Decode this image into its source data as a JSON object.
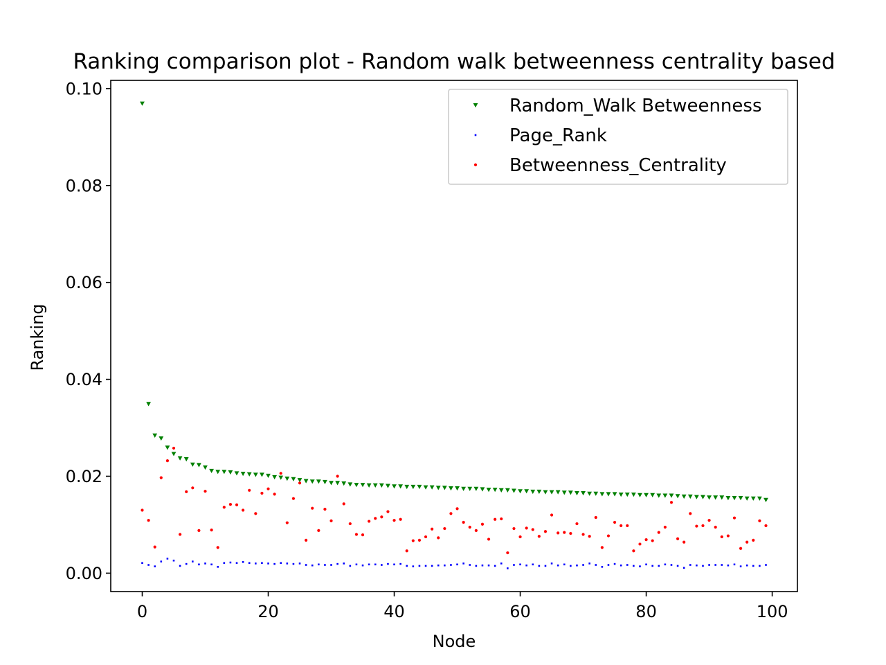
{
  "chart_data": {
    "type": "scatter",
    "title": "Ranking comparison plot - Random walk betweenness centrality based",
    "xlabel": "Node",
    "ylabel": "Ranking",
    "xlim": [
      -5,
      104
    ],
    "ylim": [
      -0.0038,
      0.1017
    ],
    "xticks": [
      0,
      20,
      40,
      60,
      80,
      100
    ],
    "yticks": [
      0.0,
      0.02,
      0.04,
      0.06,
      0.08,
      0.1
    ],
    "xtick_labels": [
      "0",
      "20",
      "40",
      "60",
      "80",
      "100"
    ],
    "ytick_labels": [
      "0.00",
      "0.02",
      "0.04",
      "0.06",
      "0.08",
      "0.10"
    ],
    "grid": false,
    "legend_position": "top-right",
    "series": [
      {
        "name": "Random_Walk Betweenness",
        "color": "#008000",
        "marker": "triangle-down",
        "values": [
          0.0969,
          0.0349,
          0.0284,
          0.0278,
          0.0259,
          0.0246,
          0.0237,
          0.0235,
          0.0224,
          0.0223,
          0.0218,
          0.0211,
          0.0209,
          0.0209,
          0.0208,
          0.0206,
          0.0205,
          0.0204,
          0.0203,
          0.0203,
          0.0201,
          0.0198,
          0.0197,
          0.0195,
          0.0194,
          0.0192,
          0.019,
          0.0189,
          0.0189,
          0.0188,
          0.0186,
          0.0186,
          0.0185,
          0.0183,
          0.0182,
          0.0182,
          0.0181,
          0.0181,
          0.0181,
          0.018,
          0.0179,
          0.0179,
          0.0178,
          0.0178,
          0.0178,
          0.0177,
          0.0177,
          0.0176,
          0.0176,
          0.0175,
          0.0175,
          0.0174,
          0.0174,
          0.0174,
          0.0173,
          0.0172,
          0.0172,
          0.0171,
          0.0171,
          0.017,
          0.0169,
          0.0169,
          0.0168,
          0.0168,
          0.0167,
          0.0167,
          0.0167,
          0.0166,
          0.0166,
          0.0165,
          0.0165,
          0.0164,
          0.0164,
          0.0163,
          0.0163,
          0.0163,
          0.0162,
          0.0162,
          0.0162,
          0.0161,
          0.0161,
          0.0161,
          0.016,
          0.016,
          0.016,
          0.0159,
          0.0158,
          0.0158,
          0.0157,
          0.0157,
          0.0156,
          0.0156,
          0.0156,
          0.0155,
          0.0155,
          0.0155,
          0.0154,
          0.0154,
          0.0154,
          0.0151
        ]
      },
      {
        "name": "Page_Rank",
        "color": "#0000ff",
        "marker": "pixel",
        "values": [
          0.0021,
          0.0017,
          0.0014,
          0.0024,
          0.003,
          0.0026,
          0.0015,
          0.0019,
          0.0024,
          0.0018,
          0.002,
          0.0018,
          0.0013,
          0.0021,
          0.0022,
          0.0021,
          0.0023,
          0.0021,
          0.002,
          0.0021,
          0.002,
          0.0019,
          0.0021,
          0.002,
          0.0019,
          0.002,
          0.0017,
          0.0016,
          0.0018,
          0.0017,
          0.0017,
          0.0019,
          0.002,
          0.0015,
          0.0018,
          0.0016,
          0.0018,
          0.0018,
          0.0017,
          0.0019,
          0.0018,
          0.0019,
          0.0015,
          0.0014,
          0.0015,
          0.0015,
          0.0015,
          0.0016,
          0.0016,
          0.0017,
          0.0018,
          0.002,
          0.0017,
          0.0015,
          0.0016,
          0.0016,
          0.0015,
          0.002,
          0.001,
          0.0017,
          0.0018,
          0.0016,
          0.0018,
          0.0015,
          0.0015,
          0.002,
          0.0016,
          0.0018,
          0.0015,
          0.0016,
          0.0017,
          0.002,
          0.0017,
          0.0013,
          0.0017,
          0.0019,
          0.0016,
          0.0017,
          0.0015,
          0.0014,
          0.0018,
          0.0015,
          0.0015,
          0.0018,
          0.0017,
          0.0015,
          0.0011,
          0.0017,
          0.0016,
          0.0015,
          0.0017,
          0.0017,
          0.0017,
          0.0016,
          0.0018,
          0.0014,
          0.0016,
          0.0015,
          0.0015,
          0.0017
        ]
      },
      {
        "name": "Betweenness_Centrality",
        "color": "#ff0000",
        "marker": "point",
        "values": [
          0.013,
          0.0109,
          0.0054,
          0.0197,
          0.0232,
          0.0258,
          0.008,
          0.0168,
          0.0176,
          0.0088,
          0.0169,
          0.0089,
          0.0053,
          0.0136,
          0.0142,
          0.0141,
          0.013,
          0.0171,
          0.0123,
          0.0165,
          0.0174,
          0.0163,
          0.0206,
          0.0104,
          0.0154,
          0.0186,
          0.0068,
          0.0134,
          0.0088,
          0.0132,
          0.0108,
          0.02,
          0.0143,
          0.0102,
          0.008,
          0.0079,
          0.0107,
          0.0113,
          0.0116,
          0.0127,
          0.0109,
          0.0111,
          0.0046,
          0.0067,
          0.0068,
          0.0075,
          0.0091,
          0.0073,
          0.0092,
          0.0123,
          0.0133,
          0.0105,
          0.0095,
          0.0088,
          0.0101,
          0.007,
          0.0111,
          0.0112,
          0.0042,
          0.0092,
          0.0075,
          0.0093,
          0.009,
          0.0076,
          0.0086,
          0.012,
          0.0083,
          0.0084,
          0.0082,
          0.0102,
          0.008,
          0.0076,
          0.0115,
          0.0053,
          0.0077,
          0.0105,
          0.0098,
          0.0098,
          0.0046,
          0.006,
          0.0069,
          0.0067,
          0.0084,
          0.0095,
          0.0146,
          0.0071,
          0.0064,
          0.0123,
          0.0097,
          0.0098,
          0.0109,
          0.0095,
          0.0075,
          0.0077,
          0.0114,
          0.0051,
          0.0064,
          0.0068,
          0.0108,
          0.0098
        ]
      }
    ]
  }
}
